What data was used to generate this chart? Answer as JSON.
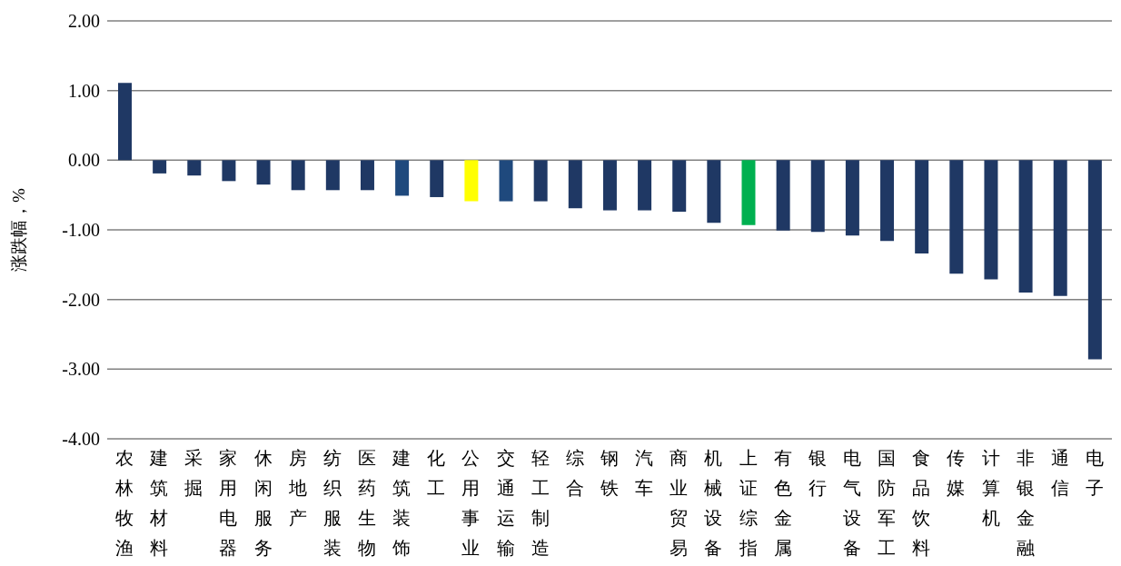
{
  "chart_data": {
    "type": "bar",
    "ylabel": "涨跌幅，%",
    "categories": [
      "农林牧渔",
      "建筑材料",
      "采掘",
      "家用电器",
      "休闲服务",
      "房地产",
      "纺织服装",
      "医药生物",
      "建筑装饰",
      "化工",
      "公用事业",
      "交通运输",
      "轻工制造",
      "综合",
      "钢铁",
      "汽车",
      "商业贸易",
      "机械设备",
      "上证综指",
      "有色金属",
      "银行",
      "电气设备",
      "国防军工",
      "食品饮料",
      "传媒",
      "计算机",
      "非银金融",
      "通信",
      "电子"
    ],
    "values": [
      1.11,
      -0.19,
      -0.22,
      -0.3,
      -0.35,
      -0.43,
      -0.43,
      -0.43,
      -0.51,
      -0.53,
      -0.59,
      -0.59,
      -0.59,
      -0.69,
      -0.72,
      -0.72,
      -0.74,
      -0.9,
      -0.93,
      -1.01,
      -1.03,
      -1.08,
      -1.16,
      -1.34,
      -1.63,
      -1.71,
      -1.9,
      -1.95,
      -2.86
    ],
    "colors": [
      "#1f3864",
      "#1f3864",
      "#1f3864",
      "#1f3864",
      "#1f3864",
      "#1f3864",
      "#1f3864",
      "#1f3864",
      "#1f497d",
      "#1f3864",
      "#ffff00",
      "#1f497d",
      "#1f3864",
      "#1f3864",
      "#1f3864",
      "#1f3864",
      "#1f3864",
      "#1f3864",
      "#00b050",
      "#1f3864",
      "#1f3864",
      "#1f3864",
      "#1f3864",
      "#1f3864",
      "#1f3864",
      "#1f3864",
      "#1f3864",
      "#1f3864",
      "#1f3864"
    ],
    "ylim": [
      -4,
      2
    ],
    "yticks": [
      {
        "value": 2,
        "label": "2.00"
      },
      {
        "value": 1,
        "label": "1.00"
      },
      {
        "value": 0,
        "label": "0.00"
      },
      {
        "value": -1,
        "label": "-1.00"
      },
      {
        "value": -2,
        "label": "-2.00"
      },
      {
        "value": -3,
        "label": "-3.00"
      },
      {
        "value": -4,
        "label": "-4.00"
      }
    ],
    "grid": "y"
  }
}
